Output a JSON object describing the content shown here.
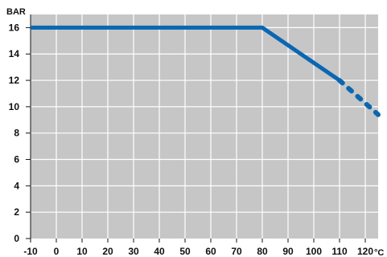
{
  "chart_data": {
    "type": "line",
    "title": "",
    "xlabel": "°C",
    "ylabel": "BAR",
    "xlim": [
      -10,
      125
    ],
    "ylim": [
      0,
      17
    ],
    "x_ticks": [
      -10,
      0,
      10,
      20,
      30,
      40,
      50,
      60,
      70,
      80,
      90,
      100,
      110,
      120
    ],
    "y_ticks": [
      0,
      2,
      4,
      6,
      8,
      10,
      12,
      14,
      16
    ],
    "grid": true,
    "colors": {
      "plot_background": "#c6c6c6",
      "grid": "#ffffff",
      "series": "#0a67b2"
    },
    "series": [
      {
        "style": "solid",
        "x": [
          -10,
          80,
          110
        ],
        "y": [
          16,
          16,
          12
        ]
      },
      {
        "style": "dotted",
        "x": [
          110,
          125
        ],
        "y": [
          12,
          9.4
        ]
      }
    ]
  }
}
